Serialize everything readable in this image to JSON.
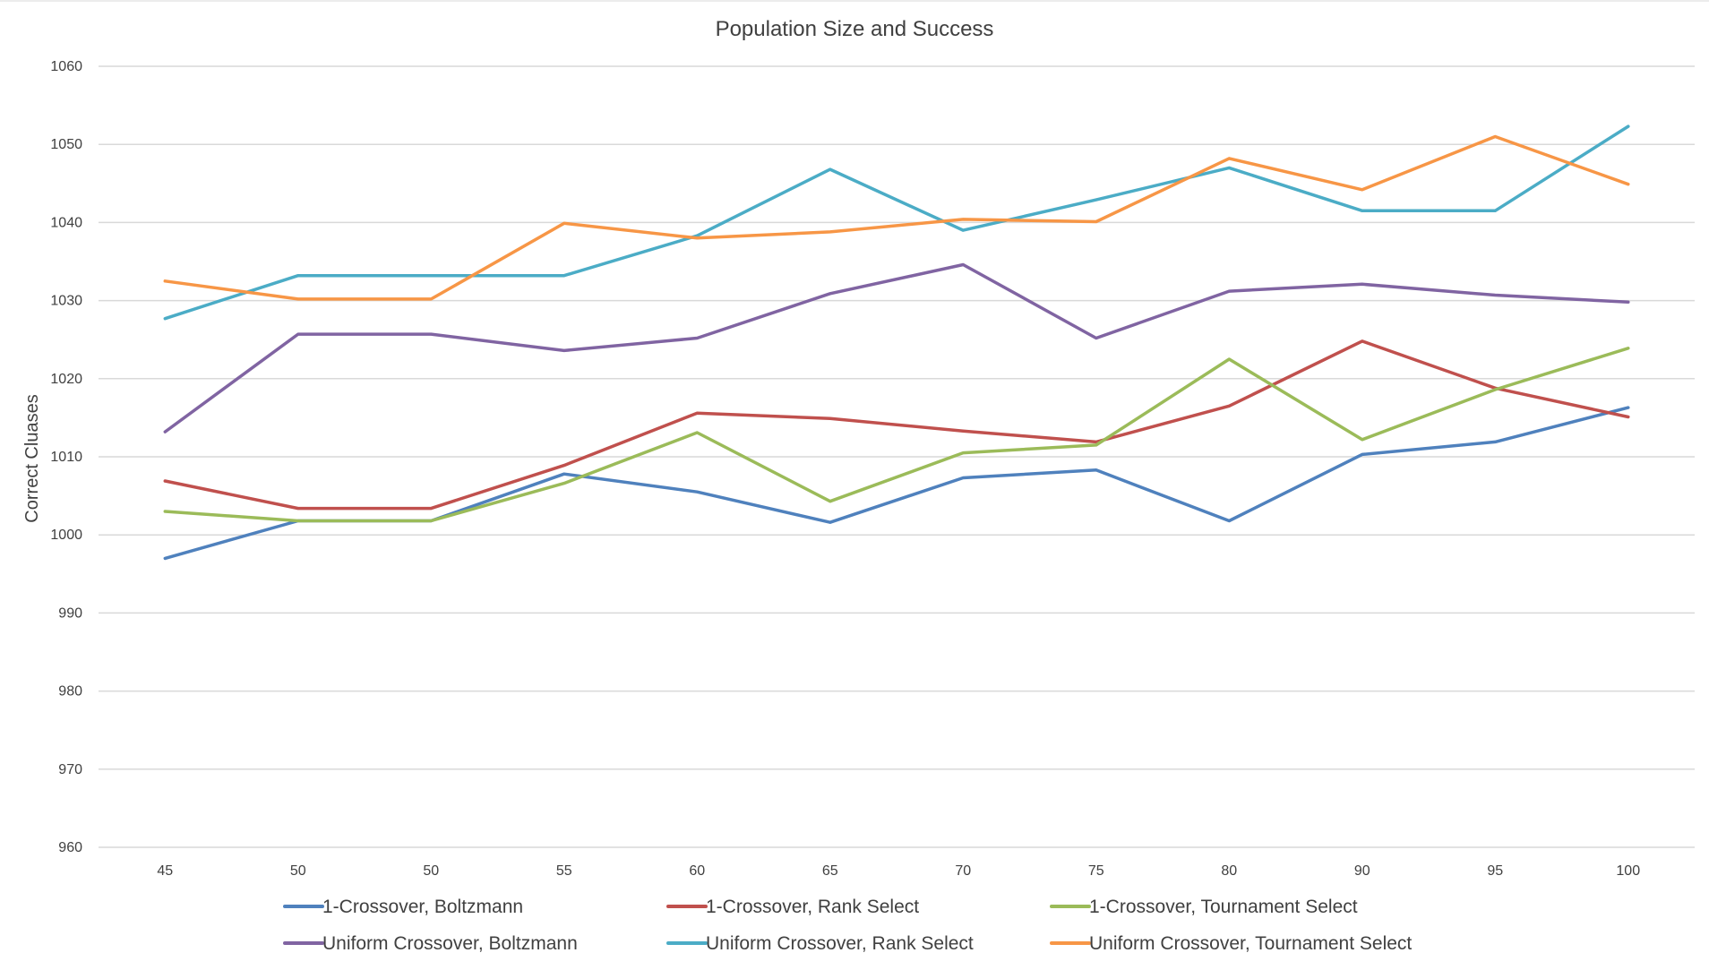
{
  "chart_data": {
    "type": "line",
    "title": "Population Size and Success",
    "xlabel": "",
    "ylabel": "Correct Cluases",
    "categories": [
      "45",
      "50",
      "50",
      "55",
      "60",
      "65",
      "70",
      "75",
      "80",
      "90",
      "95",
      "100"
    ],
    "ylim": [
      960,
      1060
    ],
    "yticks": [
      960,
      970,
      980,
      990,
      1000,
      1010,
      1020,
      1030,
      1040,
      1050,
      1060
    ],
    "grid": true,
    "legend_position": "bottom",
    "series": [
      {
        "name": "1-Crossover, Boltzmann",
        "color": "#4F81BD",
        "values": [
          997.0,
          1001.8,
          1001.8,
          1007.8,
          1005.5,
          1001.6,
          1007.3,
          1008.3,
          1001.8,
          1010.3,
          1011.9,
          1016.3
        ]
      },
      {
        "name": "1-Crossover, Rank Select",
        "color": "#C0504D",
        "values": [
          1006.9,
          1003.4,
          1003.4,
          1008.9,
          1015.6,
          1014.9,
          1013.3,
          1011.9,
          1016.5,
          1024.8,
          1018.8,
          1015.1
        ]
      },
      {
        "name": "1-Crossover, Tournament Select",
        "color": "#9BBB59",
        "values": [
          1003.0,
          1001.8,
          1001.8,
          1006.6,
          1013.1,
          1004.3,
          1010.5,
          1011.5,
          1022.5,
          1012.2,
          1018.6,
          1023.9
        ]
      },
      {
        "name": "Uniform Crossover, Boltzmann",
        "color": "#8064A2",
        "values": [
          1013.2,
          1025.7,
          1025.7,
          1023.6,
          1025.2,
          1030.9,
          1034.6,
          1025.2,
          1031.2,
          1032.1,
          1030.7,
          1029.8
        ]
      },
      {
        "name": "Uniform Crossover, Rank Select",
        "color": "#4BACC6",
        "values": [
          1027.7,
          1033.2,
          1033.2,
          1033.2,
          1038.3,
          1046.8,
          1039.0,
          1042.9,
          1047.0,
          1041.5,
          1041.5,
          1052.3
        ]
      },
      {
        "name": "Uniform Crossover, Tournament Select",
        "color": "#F79646",
        "values": [
          1032.5,
          1030.2,
          1030.2,
          1039.9,
          1038.0,
          1038.8,
          1040.4,
          1040.1,
          1048.2,
          1044.2,
          1051.0,
          1044.9
        ]
      }
    ]
  }
}
